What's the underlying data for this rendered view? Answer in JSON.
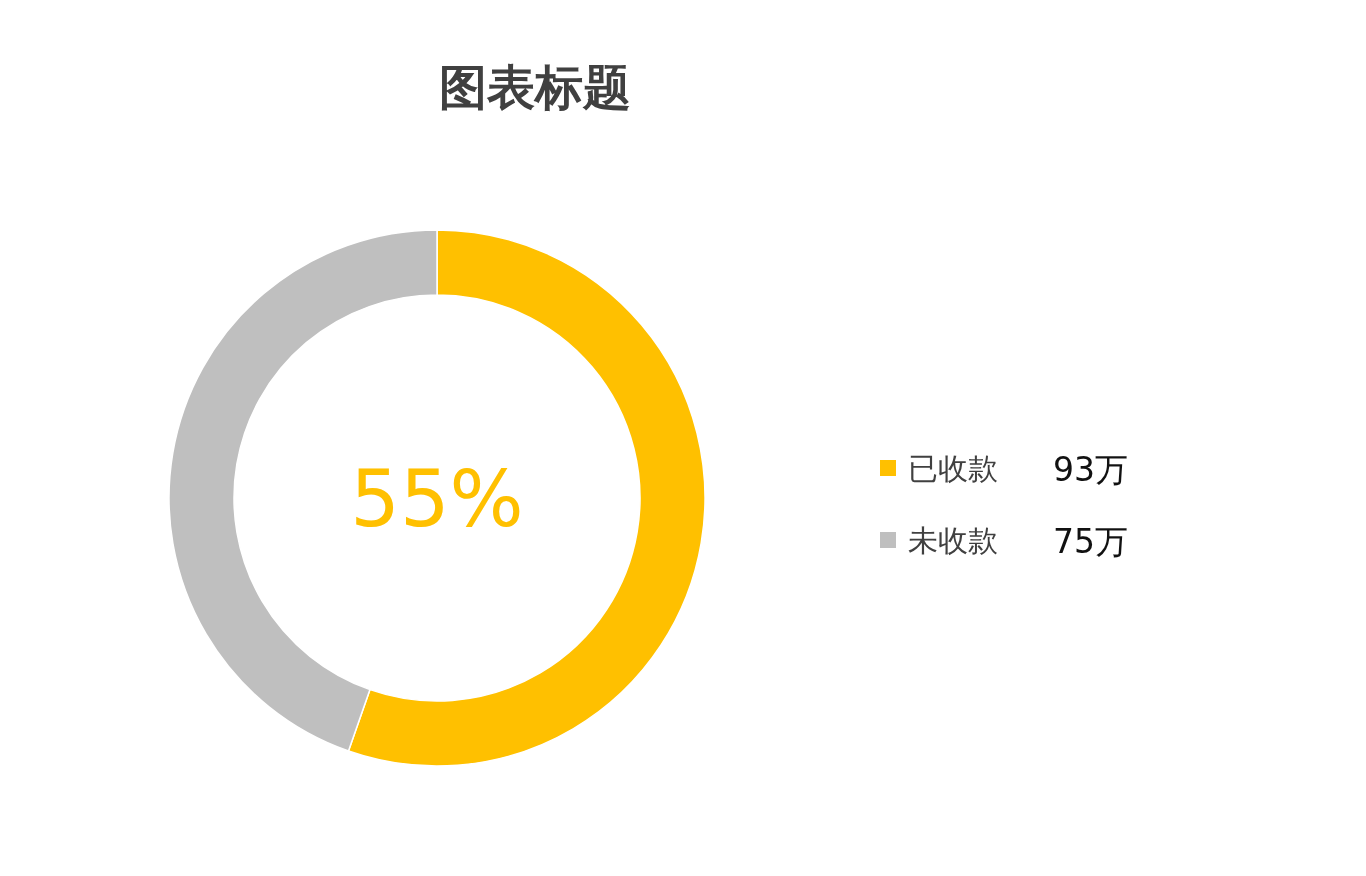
{
  "chart_data": {
    "type": "donut",
    "title": "图表标题",
    "categories": [
      "已收款",
      "未收款"
    ],
    "values": [
      93,
      75
    ],
    "colors": [
      "#ffc000",
      "#bfbfbf"
    ],
    "value_labels": [
      "93万",
      "75万"
    ],
    "annotations": [
      "55%"
    ],
    "legend": "right"
  }
}
